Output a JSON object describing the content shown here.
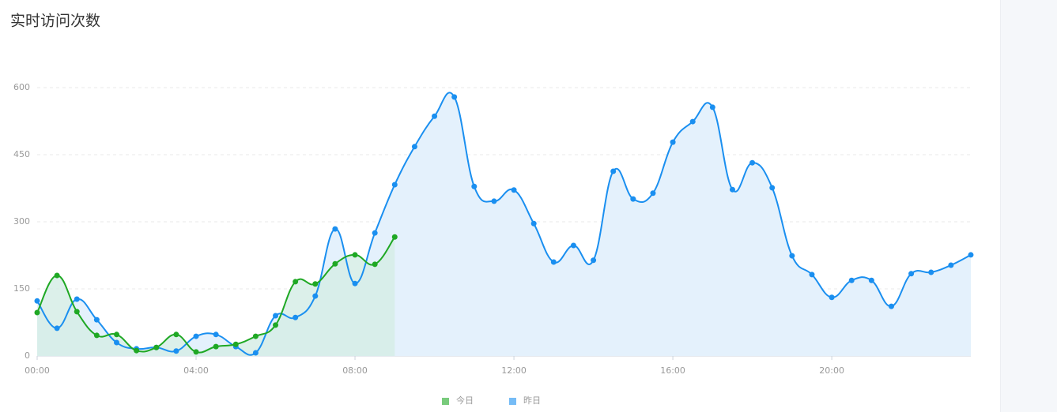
{
  "chart_data": {
    "type": "line",
    "title": "实时访问次数",
    "categories": [
      "00:00",
      null,
      null,
      null,
      null,
      null,
      null,
      null,
      "04:00",
      null,
      null,
      null,
      null,
      null,
      null,
      null,
      "08:00",
      null,
      null,
      null,
      null,
      null,
      null,
      null,
      "12:00",
      null,
      null,
      null,
      null,
      null,
      null,
      null,
      "16:00",
      null,
      null,
      null,
      null,
      null,
      null,
      null,
      "20:00",
      null,
      null,
      null,
      null,
      null,
      null,
      null
    ],
    "series": [
      {
        "name": "今日",
        "color": "#1fa824",
        "fill": "#d6ede6",
        "values": [
          97,
          180,
          99,
          46,
          48,
          12,
          19,
          48,
          9,
          21,
          26,
          44,
          69,
          166,
          161,
          206,
          226,
          205,
          266,
          null,
          null,
          null,
          null,
          null,
          null,
          null,
          null,
          null,
          null,
          null,
          null,
          null,
          null,
          null,
          null,
          null,
          null,
          null,
          null,
          null,
          null,
          null,
          null,
          null,
          null,
          null,
          null,
          null
        ]
      },
      {
        "name": "昨日",
        "color": "#1a8ff0",
        "fill": "#e4f1fc",
        "values": [
          123,
          62,
          127,
          81,
          30,
          16,
          19,
          11,
          44,
          48,
          21,
          7,
          90,
          86,
          134,
          284,
          162,
          275,
          383,
          468,
          536,
          579,
          379,
          346,
          371,
          296,
          210,
          247,
          214,
          413,
          351,
          364,
          478,
          524,
          556,
          372,
          432,
          376,
          224,
          182,
          131,
          169,
          169,
          111,
          184,
          187,
          203,
          226
        ]
      }
    ],
    "ylim": [
      0,
      600
    ],
    "yticks": [
      0,
      150,
      300,
      450,
      600
    ],
    "grid": true,
    "legend": "bottom"
  }
}
